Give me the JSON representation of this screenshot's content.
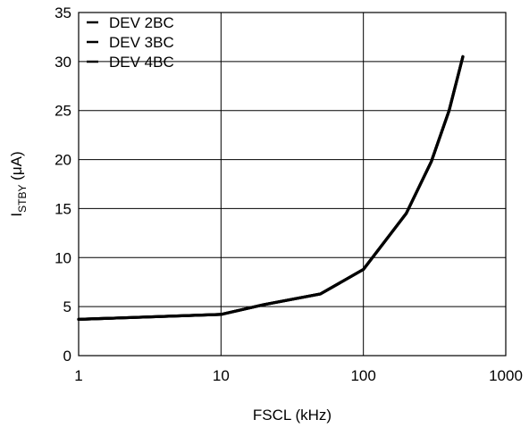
{
  "chart_data": {
    "type": "line",
    "title": "",
    "xlabel": "FSCL (kHz)",
    "ylabel_main": "I",
    "ylabel_sub": "STBY",
    "ylabel_unit": " (μA)",
    "x_scale": "log",
    "xlim": [
      1,
      1000
    ],
    "ylim": [
      0,
      35
    ],
    "x_ticks": [
      1,
      10,
      100,
      1000
    ],
    "x_tick_labels": [
      "1",
      "10",
      "100",
      "1000"
    ],
    "y_ticks": [
      0,
      5,
      10,
      15,
      20,
      25,
      30,
      35
    ],
    "y_tick_labels": [
      "0",
      "5",
      "10",
      "15",
      "20",
      "25",
      "30",
      "35"
    ],
    "grid": true,
    "legend_position": "top-left",
    "legend": [
      "DEV 2BC",
      "DEV 3BC",
      "DEV 4BC"
    ],
    "series": [
      {
        "name": "DEV 2BC",
        "x": [
          1,
          10,
          20,
          50,
          100,
          200,
          300,
          400,
          500
        ],
        "y": [
          3.7,
          4.2,
          5.2,
          6.3,
          8.8,
          14.5,
          19.8,
          25.0,
          30.5
        ]
      },
      {
        "name": "DEV 3BC",
        "x": [
          1,
          10,
          20,
          50,
          100,
          200,
          300,
          400,
          500
        ],
        "y": [
          3.7,
          4.2,
          5.2,
          6.3,
          8.8,
          14.5,
          19.8,
          25.0,
          30.5
        ]
      },
      {
        "name": "DEV 4BC",
        "x": [
          1,
          10,
          20,
          50,
          100,
          200,
          300,
          400,
          500
        ],
        "y": [
          3.7,
          4.2,
          5.2,
          6.3,
          8.8,
          14.5,
          19.8,
          25.0,
          30.5
        ]
      }
    ]
  }
}
